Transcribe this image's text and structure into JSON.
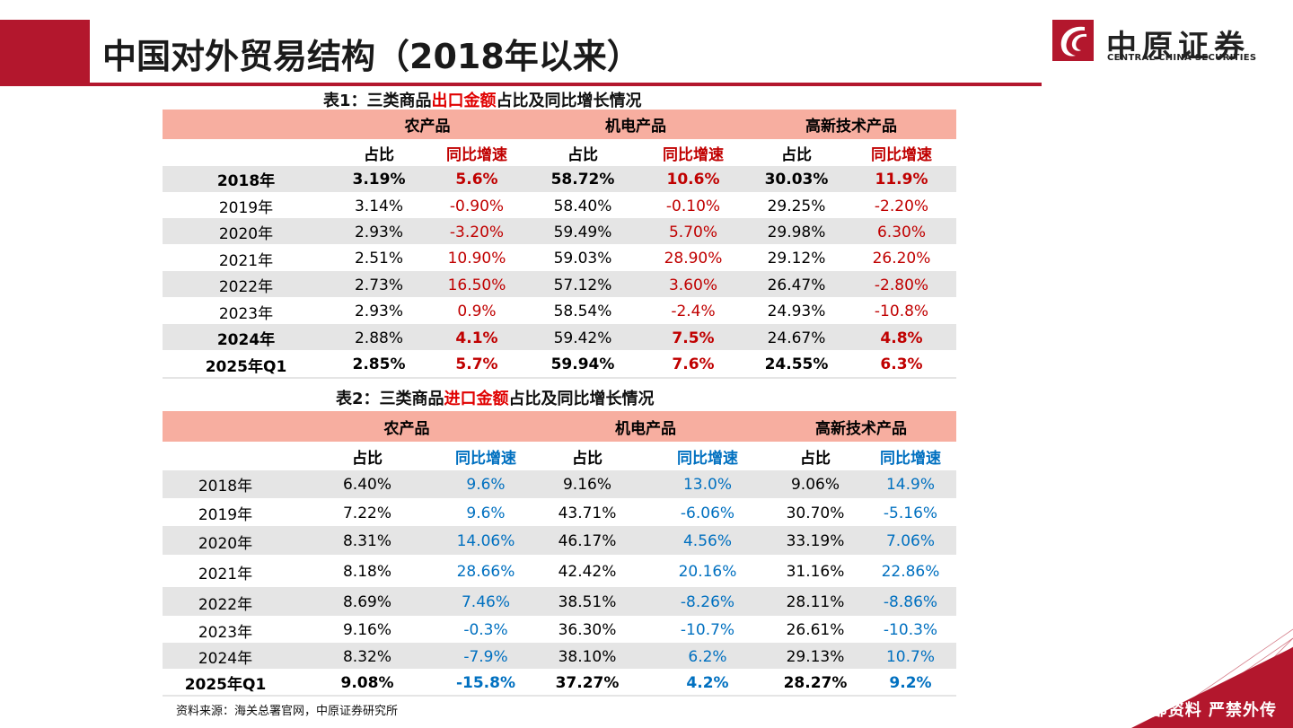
{
  "header": {
    "title": "中国对外贸易结构（2018年以来）",
    "logo_cn": "中原证券",
    "logo_en": "CENTRAL CHINA SECURITIES"
  },
  "colors": {
    "brand_red": "#B3172D",
    "header_fill": "#F7AEA0",
    "row_shade": "#E5E5E5",
    "growth_red": "#C00000",
    "growth_blue": "#0070C0"
  },
  "table1": {
    "caption_pre": "表1：三类商品",
    "caption_hl": "出口金额",
    "caption_post": "占比及同比增长情况",
    "groups": [
      "农产品",
      "机电产品",
      "高新技术产品"
    ],
    "sub_share": "占比",
    "sub_growth": "同比增速",
    "rows": [
      {
        "year": "2018年",
        "v": [
          "3.19%",
          "5.6%",
          "58.72%",
          "10.6%",
          "30.03%",
          "11.9%"
        ]
      },
      {
        "year": "2019年",
        "v": [
          "3.14%",
          "-0.90%",
          "58.40%",
          "-0.10%",
          "29.25%",
          "-2.20%"
        ]
      },
      {
        "year": "2020年",
        "v": [
          "2.93%",
          "-3.20%",
          "59.49%",
          "5.70%",
          "29.98%",
          "6.30%"
        ]
      },
      {
        "year": "2021年",
        "v": [
          "2.51%",
          "10.90%",
          "59.03%",
          "28.90%",
          "29.12%",
          "26.20%"
        ]
      },
      {
        "year": "2022年",
        "v": [
          "2.73%",
          "16.50%",
          "57.12%",
          "3.60%",
          "26.47%",
          "-2.80%"
        ]
      },
      {
        "year": "2023年",
        "v": [
          "2.93%",
          "0.9%",
          "58.54%",
          "-2.4%",
          "24.93%",
          "-10.8%"
        ]
      },
      {
        "year": "2024年",
        "v": [
          "2.88%",
          "4.1%",
          "59.42%",
          "7.5%",
          "24.67%",
          "4.8%"
        ]
      },
      {
        "year": "2025年Q1",
        "v": [
          "2.85%",
          "5.7%",
          "59.94%",
          "7.6%",
          "24.55%",
          "6.3%"
        ]
      }
    ]
  },
  "table2": {
    "caption_pre": "表2：三类商品",
    "caption_hl": "进口金额",
    "caption_post": "占比及同比增长情况",
    "groups": [
      "农产品",
      "机电产品",
      "高新技术产品"
    ],
    "sub_share": "占比",
    "sub_growth": "同比增速",
    "rows": [
      {
        "year": "2018年",
        "v": [
          "6.40%",
          "9.6%",
          "9.16%",
          "13.0%",
          "9.06%",
          "14.9%"
        ]
      },
      {
        "year": "2019年",
        "v": [
          "7.22%",
          "9.6%",
          "43.71%",
          "-6.06%",
          "30.70%",
          "-5.16%"
        ]
      },
      {
        "year": "2020年",
        "v": [
          "8.31%",
          "14.06%",
          "46.17%",
          "4.56%",
          "33.19%",
          "7.06%"
        ]
      },
      {
        "year": "2021年",
        "v": [
          "8.18%",
          "28.66%",
          "42.42%",
          "20.16%",
          "31.16%",
          "22.86%"
        ]
      },
      {
        "year": "2022年",
        "v": [
          "8.69%",
          "7.46%",
          "38.51%",
          "-8.26%",
          "28.11%",
          "-8.86%"
        ]
      },
      {
        "year": "2023年",
        "v": [
          "9.16%",
          "-0.3%",
          "36.30%",
          "-10.7%",
          "26.61%",
          "-10.3%"
        ]
      },
      {
        "year": "2024年",
        "v": [
          "8.32%",
          "-7.9%",
          "38.10%",
          "6.2%",
          "29.13%",
          "10.7%"
        ]
      },
      {
        "year": "2025年Q1",
        "v": [
          "9.08%",
          "-15.8%",
          "37.27%",
          "4.2%",
          "28.27%",
          "9.2%"
        ]
      }
    ]
  },
  "footer": {
    "source": "资料来源：海关总署官网，中原证券研究所",
    "internal": "内部资料   严禁外传"
  }
}
